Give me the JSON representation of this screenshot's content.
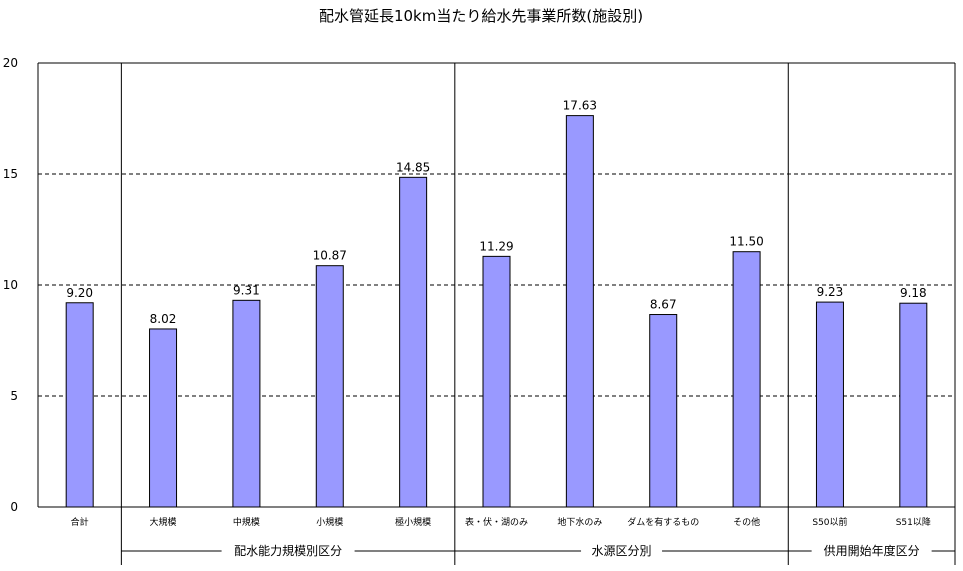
{
  "chart_data": {
    "type": "bar",
    "title": "配水管延長10km当たり給水先事業所数(施設別)",
    "xlabel": "",
    "ylabel": "",
    "ylim": [
      0,
      20
    ],
    "yticks": [
      0,
      5,
      10,
      15,
      20
    ],
    "grid": true,
    "bar_color": "#9999ff",
    "categories": [
      "合計",
      "大規模",
      "中規模",
      "小規模",
      "極小規模",
      "表・伏・湖のみ",
      "地下水のみ",
      "ダムを有するもの",
      "その他",
      "S50以前",
      "S51以降"
    ],
    "values": [
      9.2,
      8.02,
      9.31,
      10.87,
      14.85,
      11.29,
      17.63,
      8.67,
      11.5,
      9.23,
      9.18
    ],
    "value_labels": [
      "9.20",
      "8.02",
      "9.31",
      "10.87",
      "14.85",
      "11.29",
      "17.63",
      "8.67",
      "11.50",
      "9.23",
      "9.18"
    ],
    "groups": [
      {
        "label": "配水能力規模別区分",
        "start": 1,
        "end": 4
      },
      {
        "label": "水源区分別",
        "start": 5,
        "end": 8
      },
      {
        "label": "供用開始年度区分",
        "start": 9,
        "end": 10
      }
    ]
  }
}
